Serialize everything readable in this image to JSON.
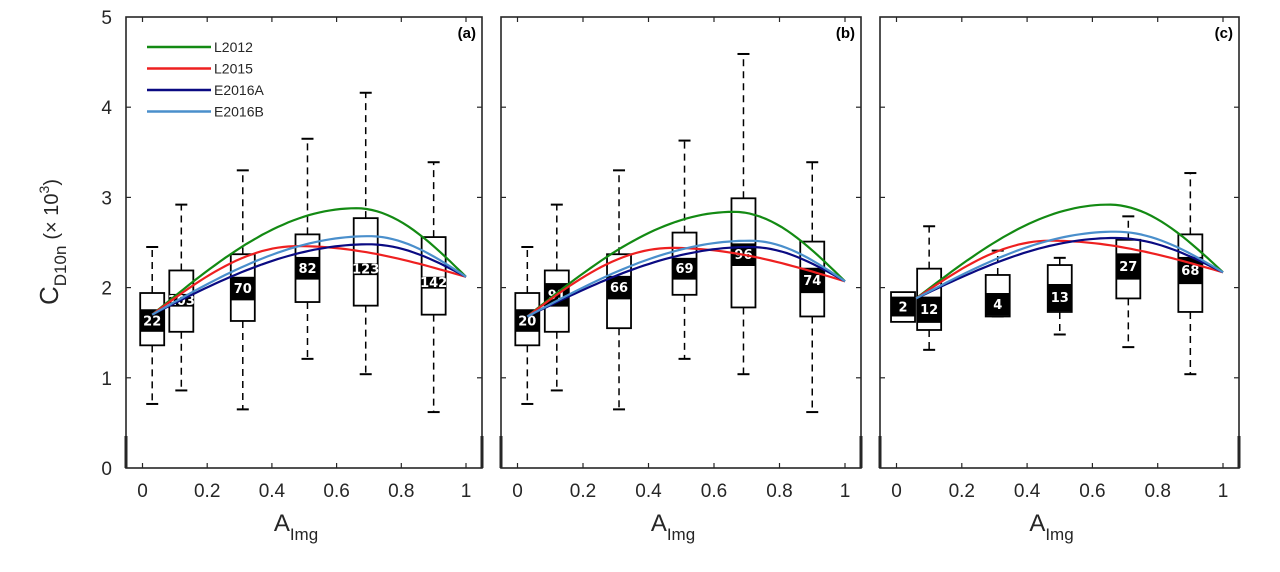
{
  "chart_data": {
    "type": "box",
    "ylabel": {
      "main": "C",
      "sub": "D10n",
      "suffix": "(× 10",
      "sup": "3",
      "close": ")"
    },
    "xlabel": {
      "main": "A",
      "sub": "Img"
    },
    "ylim": [
      0,
      5
    ],
    "xlim": [
      -0.05,
      1.05
    ],
    "yticks": [
      0,
      1,
      2,
      3,
      4,
      5
    ],
    "xticks": [
      0,
      0.2,
      0.4,
      0.6,
      0.8,
      1
    ],
    "xtick_labels": [
      "0",
      "0.2",
      "0.4",
      "0.6",
      "0.8",
      "1"
    ],
    "ytick_labels": [
      "0",
      "1",
      "2",
      "3",
      "4",
      "5"
    ],
    "legend": {
      "placement": "top-left",
      "entries": [
        {
          "name": "L2012",
          "color": "#138a13"
        },
        {
          "name": "L2015",
          "color": "#ee2020"
        },
        {
          "name": "E2016A",
          "color": "#0a0a82"
        },
        {
          "name": "E2016B",
          "color": "#4a8fcc"
        }
      ]
    },
    "panels": [
      {
        "tag": "(a)",
        "boxes": [
          {
            "x": 0.03,
            "n": "22",
            "whisker_low": 0.71,
            "q1": 1.36,
            "median": 1.55,
            "q3": 1.94,
            "whisker_high": 2.45,
            "band": [
              1.51,
              1.76
            ]
          },
          {
            "x": 0.12,
            "n": "103",
            "whisker_low": 0.86,
            "q1": 1.51,
            "median": 1.8,
            "q3": 2.19,
            "whisker_high": 2.92,
            "band": [
              1.8,
              1.93
            ]
          },
          {
            "x": 0.31,
            "n": "70",
            "whisker_low": 0.65,
            "q1": 1.63,
            "median": 1.87,
            "q3": 2.37,
            "whisker_high": 3.3,
            "band": [
              1.87,
              2.12
            ]
          },
          {
            "x": 0.51,
            "n": "82",
            "whisker_low": 1.21,
            "q1": 1.84,
            "median": 2.1,
            "q3": 2.59,
            "whisker_high": 3.65,
            "band": [
              2.1,
              2.34
            ]
          },
          {
            "x": 0.69,
            "n": "123",
            "whisker_low": 1.04,
            "q1": 1.8,
            "median": 2.15,
            "q3": 2.77,
            "whisker_high": 4.16,
            "band": [
              2.15,
              2.27
            ]
          },
          {
            "x": 0.9,
            "n": "142",
            "whisker_low": 0.62,
            "q1": 1.7,
            "median": 2.0,
            "q3": 2.56,
            "whisker_high": 3.39,
            "band": [
              2.0,
              2.12
            ]
          }
        ],
        "curves": {
          "L2012": {
            "peak_x": 0.66,
            "peak_y": 2.88
          },
          "L2015": {
            "peak_x": 0.48,
            "peak_y": 2.46
          },
          "E2016A": {
            "peak_x": 0.7,
            "peak_y": 2.48
          },
          "E2016B": {
            "peak_x": 0.7,
            "peak_y": 2.57
          }
        },
        "curve_start": {
          "x": 0.03,
          "y": 1.7
        },
        "curve_end": {
          "x": 1.0,
          "y": 2.12
        }
      },
      {
        "tag": "(b)",
        "boxes": [
          {
            "x": 0.03,
            "n": "20",
            "whisker_low": 0.71,
            "q1": 1.36,
            "median": 1.55,
            "q3": 1.94,
            "whisker_high": 2.45,
            "band": [
              1.51,
              1.76
            ]
          },
          {
            "x": 0.12,
            "n": "91",
            "whisker_low": 0.86,
            "q1": 1.51,
            "median": 1.8,
            "q3": 2.19,
            "whisker_high": 2.92,
            "band": [
              1.8,
              2.05
            ]
          },
          {
            "x": 0.31,
            "n": "66",
            "whisker_low": 0.65,
            "q1": 1.55,
            "median": 1.88,
            "q3": 2.37,
            "whisker_high": 3.3,
            "band": [
              1.88,
              2.13
            ]
          },
          {
            "x": 0.51,
            "n": "69",
            "whisker_low": 1.21,
            "q1": 1.92,
            "median": 2.1,
            "q3": 2.61,
            "whisker_high": 3.63,
            "band": [
              2.1,
              2.33
            ]
          },
          {
            "x": 0.69,
            "n": "96",
            "whisker_low": 1.04,
            "q1": 1.78,
            "median": 2.25,
            "q3": 2.99,
            "whisker_high": 4.59,
            "band": [
              2.25,
              2.49
            ]
          },
          {
            "x": 0.9,
            "n": "74",
            "whisker_low": 0.62,
            "q1": 1.68,
            "median": 1.95,
            "q3": 2.51,
            "whisker_high": 3.39,
            "band": [
              1.95,
              2.22
            ]
          }
        ],
        "curves": {
          "L2012": {
            "peak_x": 0.66,
            "peak_y": 2.84
          },
          "L2015": {
            "peak_x": 0.47,
            "peak_y": 2.44
          },
          "E2016A": {
            "peak_x": 0.71,
            "peak_y": 2.45
          },
          "E2016B": {
            "peak_x": 0.71,
            "peak_y": 2.52
          }
        },
        "curve_start": {
          "x": 0.03,
          "y": 1.68
        },
        "curve_end": {
          "x": 1.0,
          "y": 2.07
        }
      },
      {
        "tag": "(c)",
        "boxes": [
          {
            "x": 0.02,
            "n": "2",
            "whisker_low": 1.62,
            "q1": 1.62,
            "median": 1.7,
            "q3": 1.95,
            "whisker_high": 1.95,
            "band": [
              1.68,
              1.9
            ],
            "no_whiskers": true
          },
          {
            "x": 0.1,
            "n": "12",
            "whisker_low": 1.31,
            "q1": 1.53,
            "median": 1.62,
            "q3": 2.21,
            "whisker_high": 2.68,
            "band": [
              1.62,
              1.9
            ]
          },
          {
            "x": 0.31,
            "n": "4",
            "whisker_low": 1.68,
            "q1": 1.68,
            "median": 1.7,
            "q3": 2.14,
            "whisker_high": 2.41,
            "band": [
              1.7,
              1.94
            ]
          },
          {
            "x": 0.5,
            "n": "13",
            "whisker_low": 1.48,
            "q1": 1.73,
            "median": 1.75,
            "q3": 2.25,
            "whisker_high": 2.33,
            "band": [
              1.75,
              2.04
            ]
          },
          {
            "x": 0.71,
            "n": "27",
            "whisker_low": 1.34,
            "q1": 1.88,
            "median": 2.1,
            "q3": 2.53,
            "whisker_high": 2.79,
            "band": [
              2.1,
              2.38
            ]
          },
          {
            "x": 0.9,
            "n": "68",
            "whisker_low": 1.04,
            "q1": 1.73,
            "median": 2.05,
            "q3": 2.59,
            "whisker_high": 3.27,
            "band": [
              2.05,
              2.34
            ]
          }
        ],
        "curves": {
          "L2012": {
            "peak_x": 0.65,
            "peak_y": 2.92
          },
          "L2015": {
            "peak_x": 0.47,
            "peak_y": 2.52
          },
          "E2016A": {
            "peak_x": 0.67,
            "peak_y": 2.55
          },
          "E2016B": {
            "peak_x": 0.67,
            "peak_y": 2.62
          }
        },
        "curve_start": {
          "x": 0.06,
          "y": 1.88
        },
        "curve_end": {
          "x": 1.0,
          "y": 2.17
        }
      }
    ]
  }
}
